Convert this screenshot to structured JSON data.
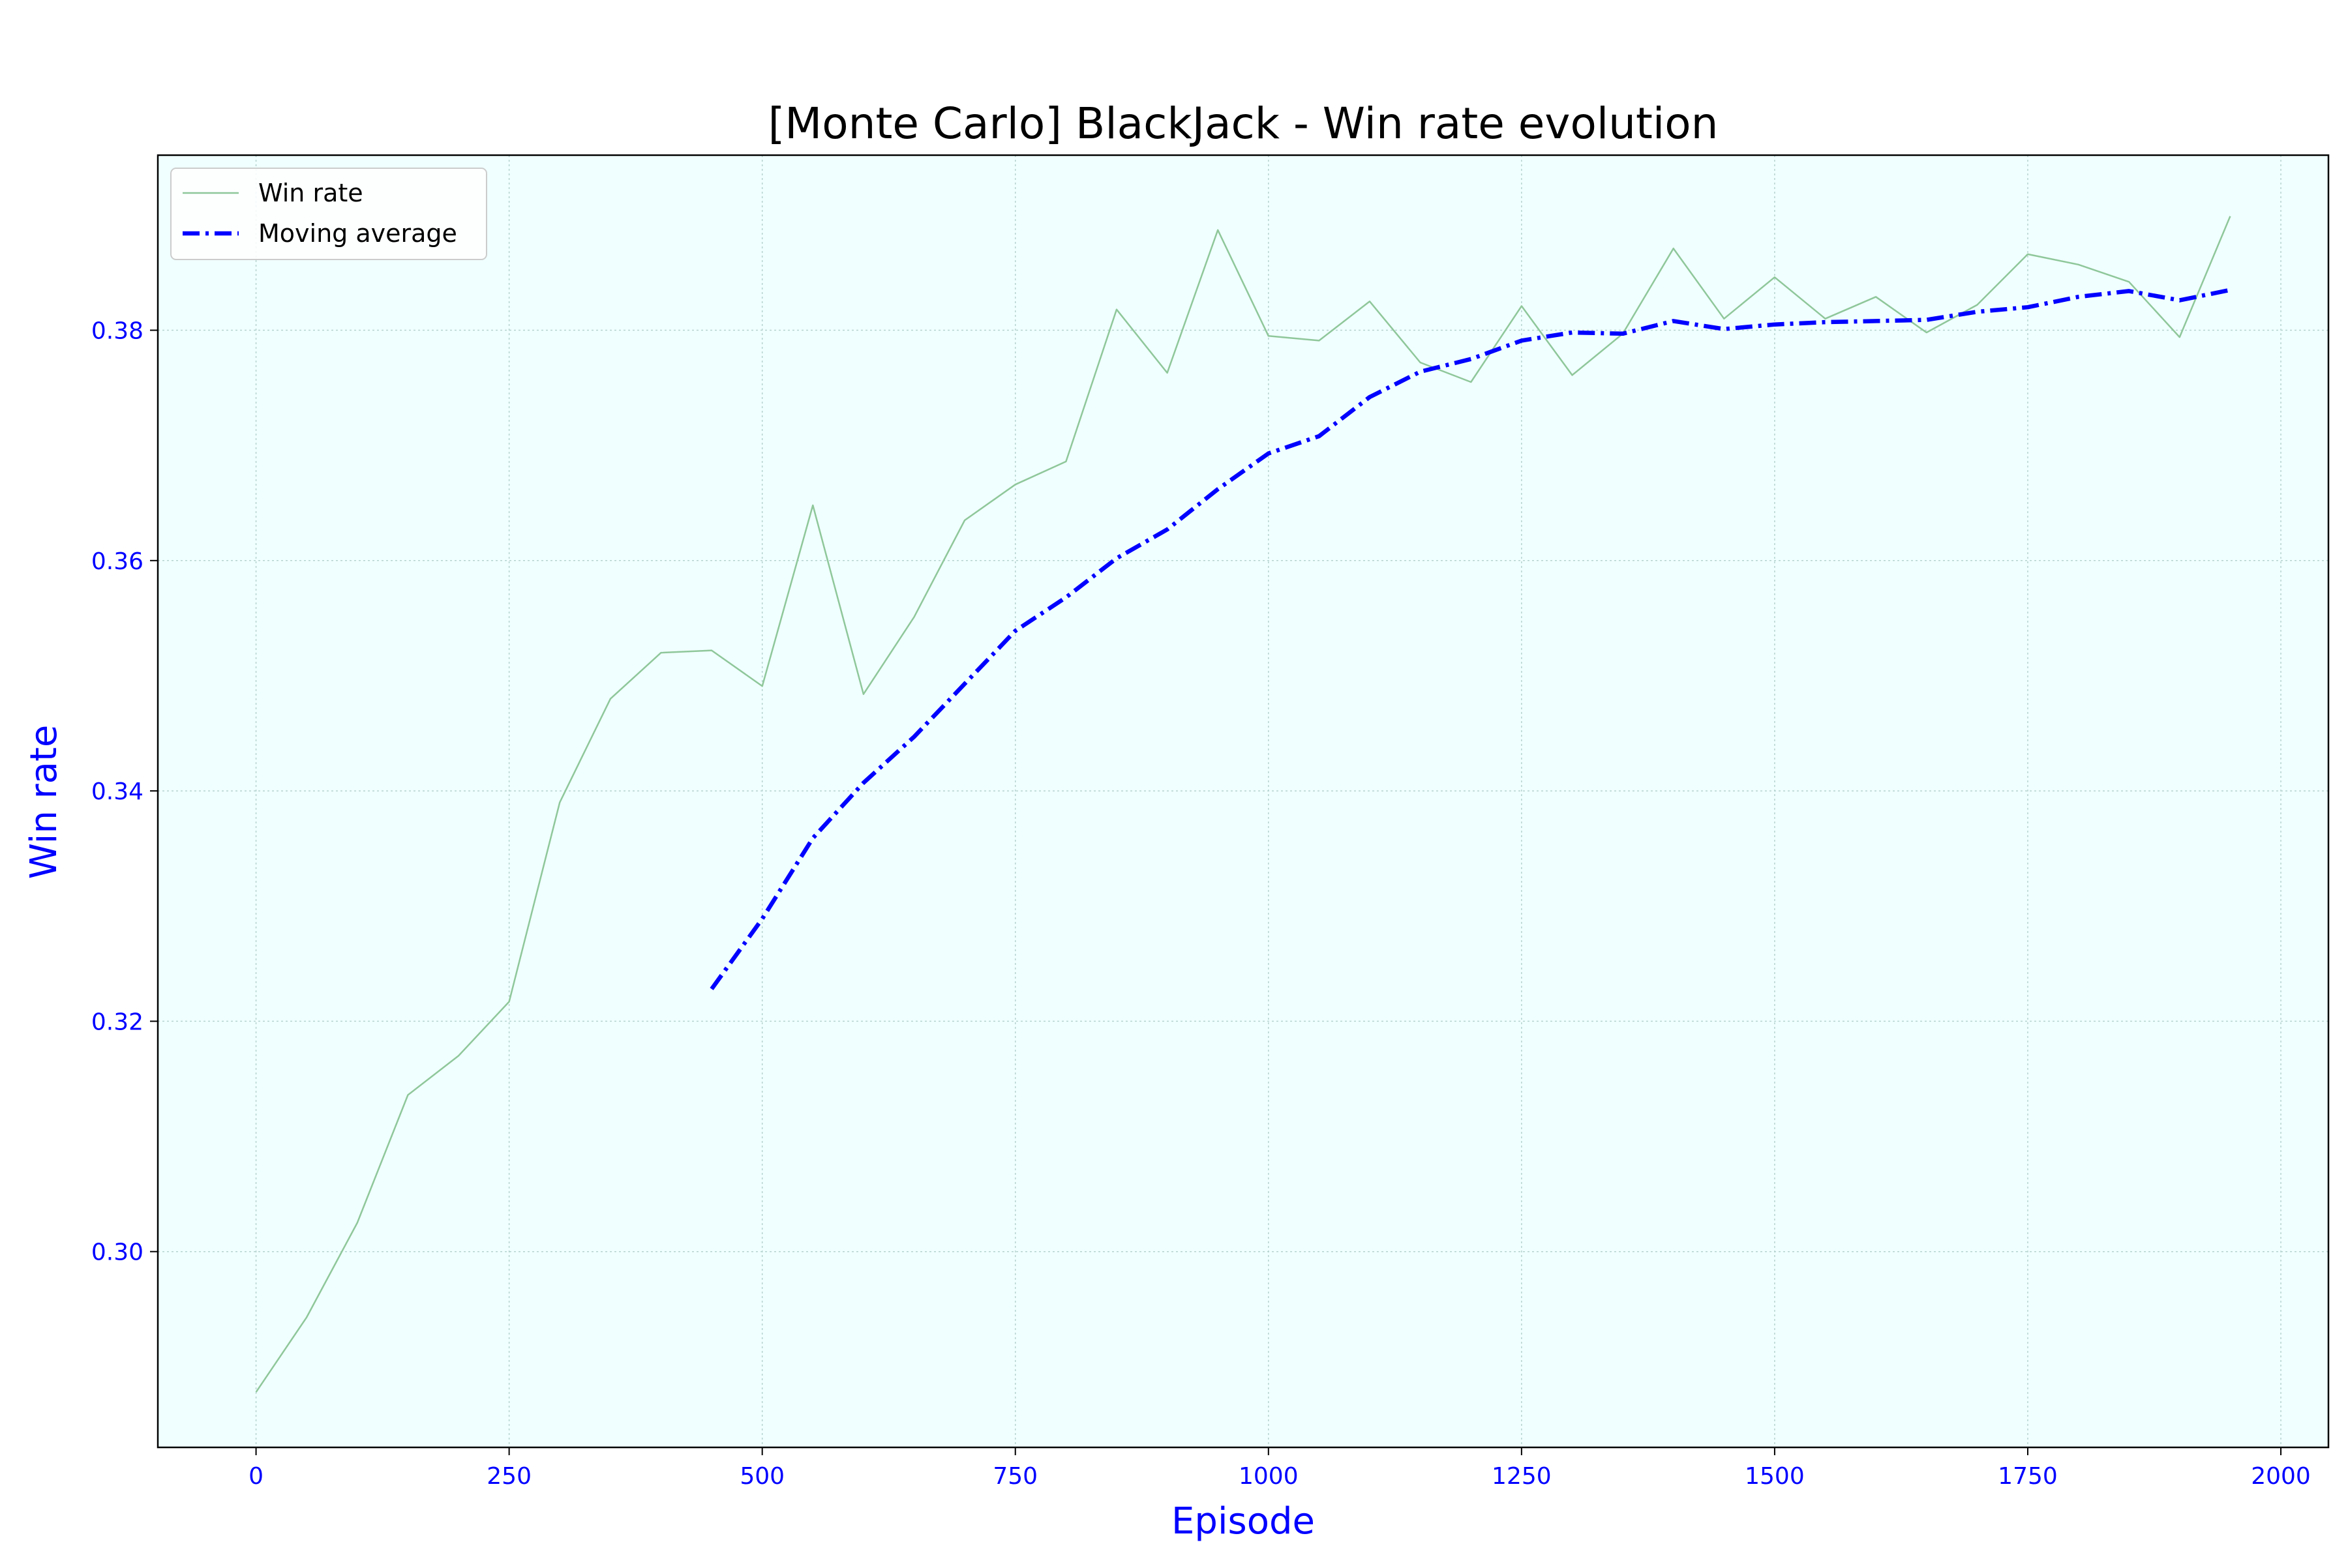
{
  "colors": {
    "plot_background": "#f0ffff",
    "win_rate_line": "#8fc79a",
    "moving_average_line": "#0000ff",
    "tick_text": "#0000ff",
    "axis_title_text": "#0000ff",
    "grid": "#b6d3cf"
  },
  "chart_data": {
    "type": "line",
    "title": "[Monte Carlo] BlackJack - Win rate evolution",
    "xlabel": "Episode",
    "ylabel": "Win rate",
    "xlim": [
      -97,
      2047
    ],
    "ylim": [
      0.283,
      0.3952
    ],
    "xticks": [
      0,
      250,
      500,
      750,
      1000,
      1250,
      1500,
      1750,
      2000
    ],
    "xtick_labels": [
      "0",
      "250",
      "500",
      "750",
      "1000",
      "1250",
      "1500",
      "1750",
      "2000"
    ],
    "yticks": [
      0.3,
      0.32,
      0.34,
      0.36,
      0.38
    ],
    "ytick_labels": [
      "0.30",
      "0.32",
      "0.34",
      "0.36",
      "0.38"
    ],
    "grid": true,
    "legend_position": "top-left",
    "series": [
      {
        "name": "Win rate",
        "style": "solid",
        "x": [
          0,
          50,
          100,
          150,
          200,
          250,
          300,
          350,
          400,
          450,
          500,
          550,
          600,
          650,
          700,
          750,
          800,
          850,
          900,
          950,
          1000,
          1050,
          1100,
          1150,
          1200,
          1250,
          1300,
          1350,
          1400,
          1450,
          1500,
          1550,
          1600,
          1650,
          1700,
          1750,
          1800,
          1850,
          1900,
          1950
        ],
        "y": [
          0.2878,
          0.2943,
          0.3025,
          0.3136,
          0.317,
          0.3217,
          0.339,
          0.348,
          0.352,
          0.3522,
          0.3491,
          0.3648,
          0.3484,
          0.3551,
          0.3635,
          0.3666,
          0.3686,
          0.3818,
          0.3763,
          0.3887,
          0.3795,
          0.3791,
          0.3825,
          0.3772,
          0.3755,
          0.3821,
          0.3761,
          0.3797,
          0.3871,
          0.381,
          0.3846,
          0.381,
          0.3829,
          0.3798,
          0.3822,
          0.3866,
          0.3857,
          0.3842,
          0.3794,
          0.3899
        ]
      },
      {
        "name": "Moving average",
        "style": "dashdot",
        "x": [
          450,
          500,
          550,
          600,
          650,
          700,
          750,
          800,
          850,
          900,
          950,
          1000,
          1050,
          1100,
          1150,
          1200,
          1250,
          1300,
          1350,
          1400,
          1450,
          1500,
          1550,
          1600,
          1650,
          1700,
          1750,
          1800,
          1850,
          1900,
          1950
        ],
        "y": [
          0.3228,
          0.3289,
          0.3359,
          0.3407,
          0.3447,
          0.3493,
          0.3539,
          0.3568,
          0.3602,
          0.3627,
          0.3662,
          0.3693,
          0.3708,
          0.3742,
          0.3764,
          0.3775,
          0.3791,
          0.3798,
          0.3797,
          0.3808,
          0.3801,
          0.3805,
          0.3807,
          0.3808,
          0.3809,
          0.3816,
          0.382,
          0.3829,
          0.3834,
          0.3826,
          0.3835
        ]
      }
    ]
  }
}
